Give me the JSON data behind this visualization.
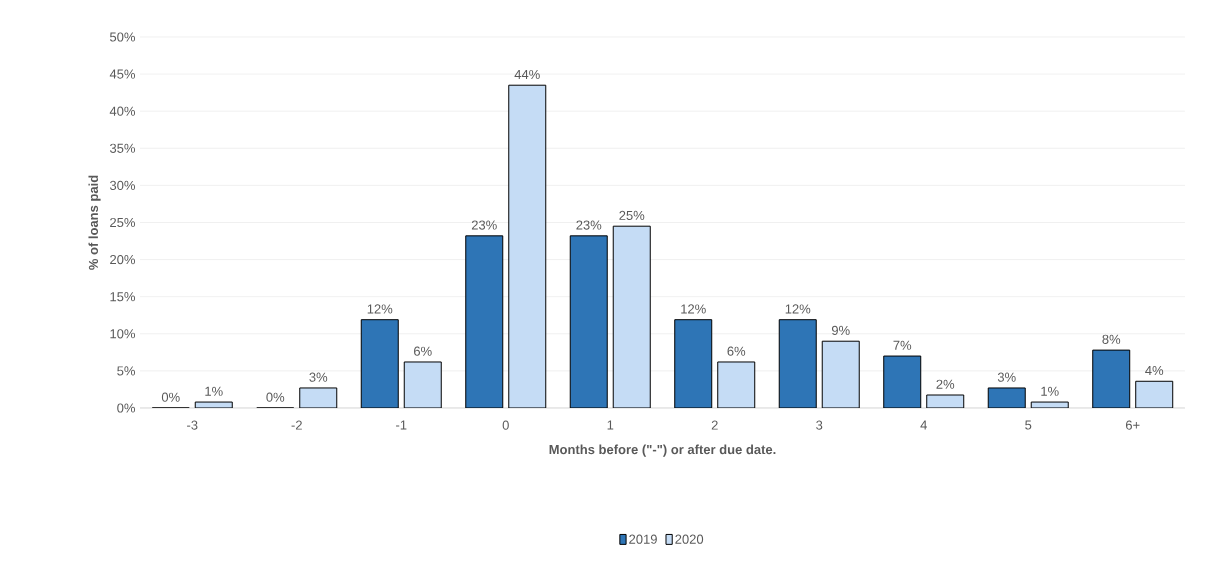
{
  "chart_data": {
    "type": "bar",
    "xlabel": "Months before (\"-\") or after due date.",
    "ylabel": "% of loans paid",
    "categories": [
      "-3",
      "-2",
      "-1",
      "0",
      "1",
      "2",
      "3",
      "4",
      "5",
      "6+"
    ],
    "series": [
      {
        "name": "2019",
        "color": "#2e75b6",
        "values": [
          0,
          0,
          11.9,
          23.2,
          23.2,
          11.9,
          11.9,
          7.0,
          2.7,
          7.8
        ],
        "value_labels": [
          "0%",
          "0%",
          "12%",
          "23%",
          "23%",
          "12%",
          "12%",
          "7%",
          "3%",
          "8%"
        ]
      },
      {
        "name": "2020",
        "color": "#c5dcf5",
        "values": [
          0.8,
          2.7,
          6.2,
          43.5,
          24.5,
          6.2,
          9.0,
          1.75,
          0.8,
          3.6
        ],
        "value_labels": [
          "1%",
          "3%",
          "6%",
          "44%",
          "25%",
          "6%",
          "9%",
          "2%",
          "1%",
          "4%"
        ]
      }
    ],
    "ylim": [
      0,
      50
    ],
    "yticks": [
      {
        "value": 0,
        "label": "0%"
      },
      {
        "value": 5,
        "label": "5%"
      },
      {
        "value": 10,
        "label": "10%"
      },
      {
        "value": 15,
        "label": "15%"
      },
      {
        "value": 20,
        "label": "20%"
      },
      {
        "value": 25,
        "label": "25%"
      },
      {
        "value": 30,
        "label": "30%"
      },
      {
        "value": 35,
        "label": "35%"
      },
      {
        "value": 40,
        "label": "40%"
      },
      {
        "value": 45,
        "label": "45%"
      },
      {
        "value": 50,
        "label": "50%"
      }
    ],
    "grid": "y",
    "legend": "bottom"
  }
}
